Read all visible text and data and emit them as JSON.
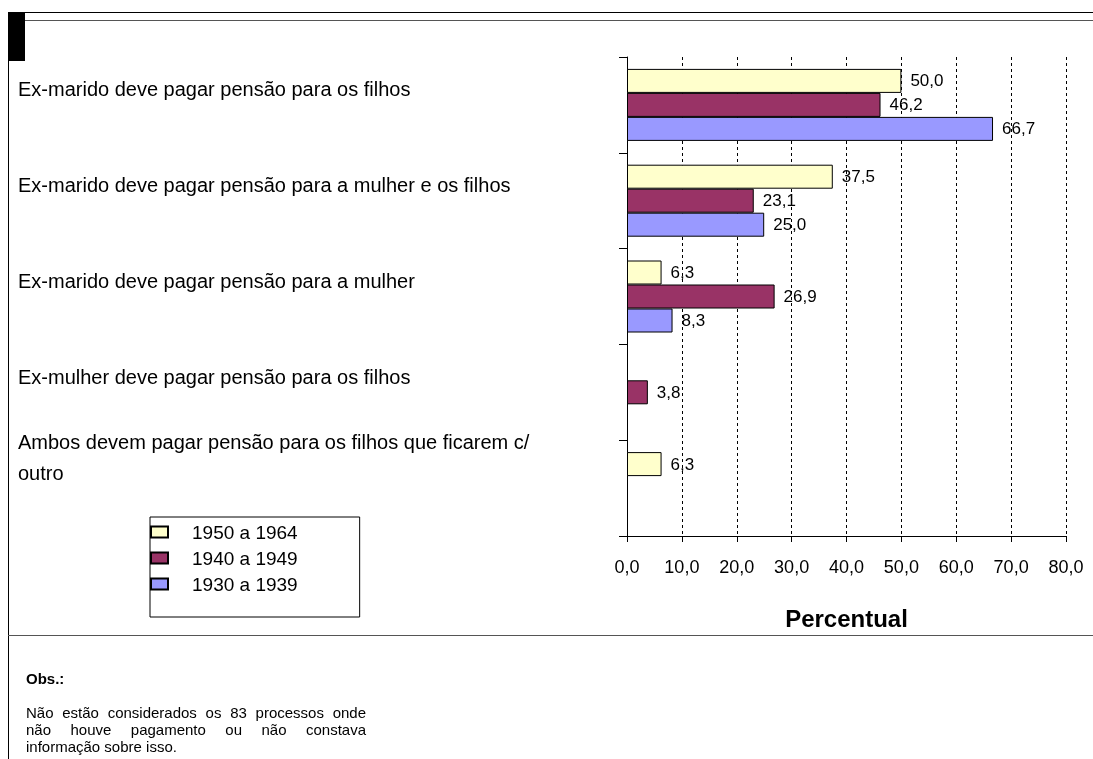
{
  "chart_data": {
    "type": "bar",
    "orientation": "horizontal",
    "xlabel": "Percentual",
    "categories": [
      "Ex-marido deve pagar pensão para os filhos",
      "Ex-marido deve pagar pensão para a mulher e os filhos",
      "Ex-marido deve pagar pensão para a mulher",
      "Ex-mulher deve pagar pensão para os filhos",
      "Ambos devem pagar pensão para os filhos que ficarem c/ outro"
    ],
    "series": [
      {
        "name": "1950 a 1964",
        "color": "#ffffcc",
        "values": [
          50.0,
          37.5,
          6.3,
          null,
          6.3
        ],
        "value_labels": [
          "50,0",
          "37,5",
          "6,3",
          null,
          "6,3"
        ]
      },
      {
        "name": "1940 a 1949",
        "color": "#993366",
        "values": [
          46.2,
          23.1,
          26.9,
          3.8,
          null
        ],
        "value_labels": [
          "46,2",
          "23,1",
          "26,9",
          "3,8",
          null
        ]
      },
      {
        "name": "1930 a 1939",
        "color": "#9999ff",
        "values": [
          66.7,
          25.0,
          8.3,
          null,
          null
        ],
        "value_labels": [
          "66,7",
          "25,0",
          "8,3",
          null,
          null
        ]
      }
    ],
    "xlim": [
      0,
      80
    ],
    "xticks": [
      {
        "value": 0,
        "label": "0,0"
      },
      {
        "value": 10,
        "label": "10,0"
      },
      {
        "value": 20,
        "label": "20,0"
      },
      {
        "value": 30,
        "label": "30,0"
      },
      {
        "value": 40,
        "label": "40,0"
      },
      {
        "value": 50,
        "label": "50,0"
      },
      {
        "value": 60,
        "label": "60,0"
      },
      {
        "value": 70,
        "label": "70,0"
      },
      {
        "value": 80,
        "label": "80,0"
      }
    ],
    "grid": "x",
    "legend": "bottom left",
    "annotations": [
      "Obs.:",
      "Não estão considerados os 83 processos onde não houve pagamento ou não constava informação sobre isso."
    ]
  }
}
